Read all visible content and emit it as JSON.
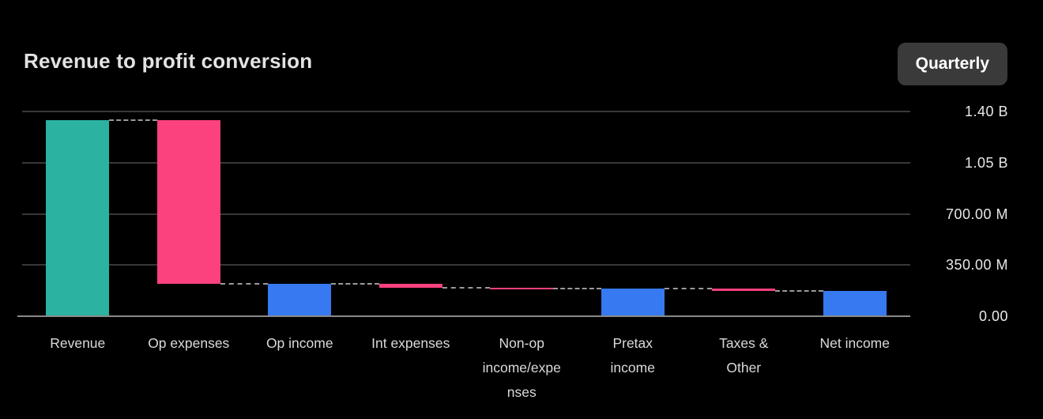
{
  "header": {
    "title": "Revenue to profit conversion",
    "period_button": "Quarterly"
  },
  "colors": {
    "background": "#000000",
    "revenue_bar_teal": "#2BB2A0",
    "expense_bar_pink": "#FB417E",
    "income_bar_blue": "#3679F1",
    "gridline": "#383838",
    "axis_line": "#8a8a8a",
    "connector_dash": "#9a9a9a",
    "title_text": "#e2e2e2",
    "tick_text": "#e8e8e8",
    "label_text": "#dadada",
    "button_bg": "#3a3a3a",
    "button_text": "#ffffff"
  },
  "chart_data": {
    "type": "bar",
    "subtype": "waterfall",
    "title": "Revenue to profit conversion",
    "period": "Quarterly",
    "grid": true,
    "legend": false,
    "axis_side": "right",
    "ylim": [
      0,
      1400000000
    ],
    "y_ticks": [
      {
        "value": 0,
        "label": "0.00"
      },
      {
        "value": 350000000,
        "label": "350.00 M"
      },
      {
        "value": 700000000,
        "label": "700.00 M"
      },
      {
        "value": 1050000000,
        "label": "1.05 B"
      },
      {
        "value": 1400000000,
        "label": "1.40 B"
      }
    ],
    "categories": [
      "Revenue",
      "Op expenses",
      "Op income",
      "Int expenses",
      "Non-op income/expenses",
      "Pretax income",
      "Taxes & Other",
      "Net income"
    ],
    "steps": [
      {
        "label": "Revenue",
        "lines": [
          "Revenue"
        ],
        "start": 0,
        "end": 1340000000,
        "value": 1340000000,
        "kind": "total",
        "color": "#2BB2A0"
      },
      {
        "label": "Op expenses",
        "lines": [
          "Op expenses"
        ],
        "start": 1340000000,
        "end": 220000000,
        "value": -1120000000,
        "kind": "decrease",
        "color": "#FB417E"
      },
      {
        "label": "Op income",
        "lines": [
          "Op income"
        ],
        "start": 0,
        "end": 220000000,
        "value": 220000000,
        "kind": "subtotal",
        "color": "#3679F1"
      },
      {
        "label": "Int expenses",
        "lines": [
          "Int expenses"
        ],
        "start": 220000000,
        "end": 195000000,
        "value": -25000000,
        "kind": "decrease",
        "color": "#FB417E"
      },
      {
        "label": "Non-op income/expenses",
        "lines": [
          "Non-op",
          "income/expe",
          "nses"
        ],
        "start": 195000000,
        "end": 190000000,
        "value": -5000000,
        "kind": "decrease",
        "color": "#FB417E"
      },
      {
        "label": "Pretax income",
        "lines": [
          "Pretax",
          "income"
        ],
        "start": 0,
        "end": 190000000,
        "value": 190000000,
        "kind": "subtotal",
        "color": "#3679F1"
      },
      {
        "label": "Taxes & Other",
        "lines": [
          "Taxes &",
          "Other"
        ],
        "start": 190000000,
        "end": 175000000,
        "value": -15000000,
        "kind": "decrease",
        "color": "#FB417E"
      },
      {
        "label": "Net income",
        "lines": [
          "Net income"
        ],
        "start": 0,
        "end": 175000000,
        "value": 175000000,
        "kind": "subtotal",
        "color": "#3679F1"
      }
    ]
  }
}
